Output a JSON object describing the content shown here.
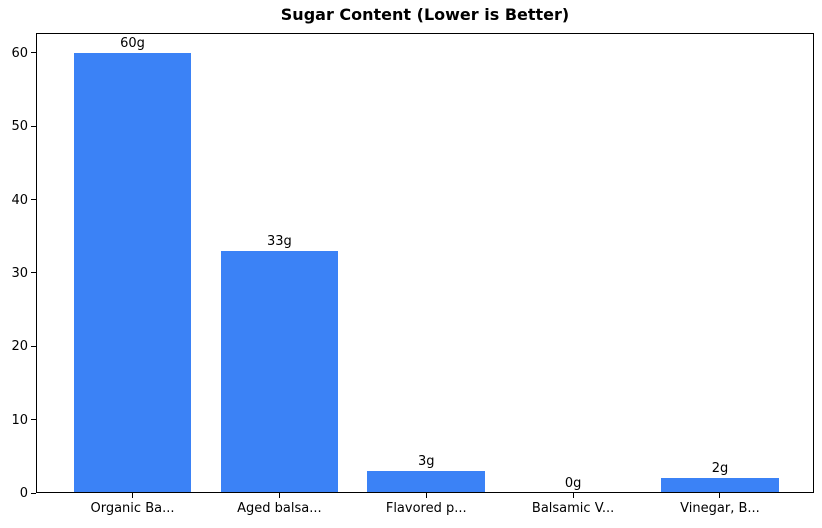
{
  "chart_data": {
    "type": "bar",
    "title": "Sugar Content (Lower is Better)",
    "categories": [
      "Organic Ba...",
      "Aged balsa...",
      "Flavored p...",
      "Balsamic V...",
      "Vinegar, B..."
    ],
    "values": [
      60,
      33,
      3,
      0,
      2
    ],
    "bar_labels": [
      "60g",
      "33g",
      "3g",
      "0g",
      "2g"
    ],
    "xlabel": "",
    "ylabel": "",
    "ylim": [
      0,
      62.7
    ],
    "yticks": [
      0,
      10,
      20,
      30,
      40,
      50,
      60
    ],
    "grid": false,
    "legend": false,
    "bar_color": "#3b82f6",
    "axis_color": "#000000",
    "text_color": "#000000",
    "background_color": "#ffffff"
  }
}
